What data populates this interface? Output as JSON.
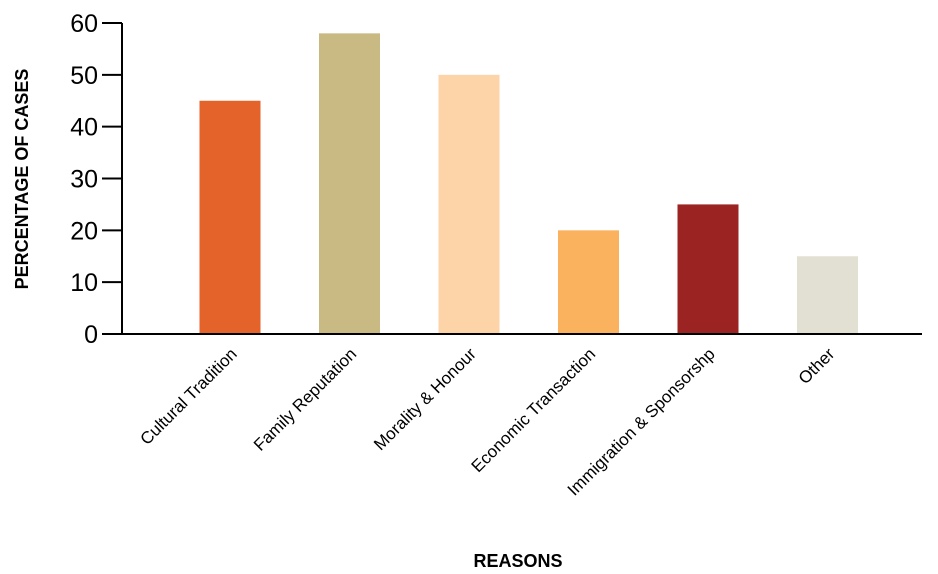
{
  "chart_data": {
    "type": "bar",
    "title": "",
    "xlabel": "REASONS",
    "ylabel": "PERCENTAGE OF CASES",
    "categories": [
      "Cultural Tradition",
      "Family Reputation",
      "Morality & Honour",
      "Economic Transaction",
      "Immigration & Sponsorshp",
      "Other"
    ],
    "values": [
      45,
      58,
      50,
      20,
      25,
      15
    ],
    "colors": [
      "#e4632b",
      "#c9b982",
      "#fdd3a8",
      "#fbb25f",
      "#9b2322",
      "#e2e0d3"
    ],
    "ylim": [
      0,
      60
    ],
    "yticks": [
      0,
      10,
      20,
      30,
      40,
      50,
      60
    ],
    "grid": false,
    "legend": "none"
  }
}
